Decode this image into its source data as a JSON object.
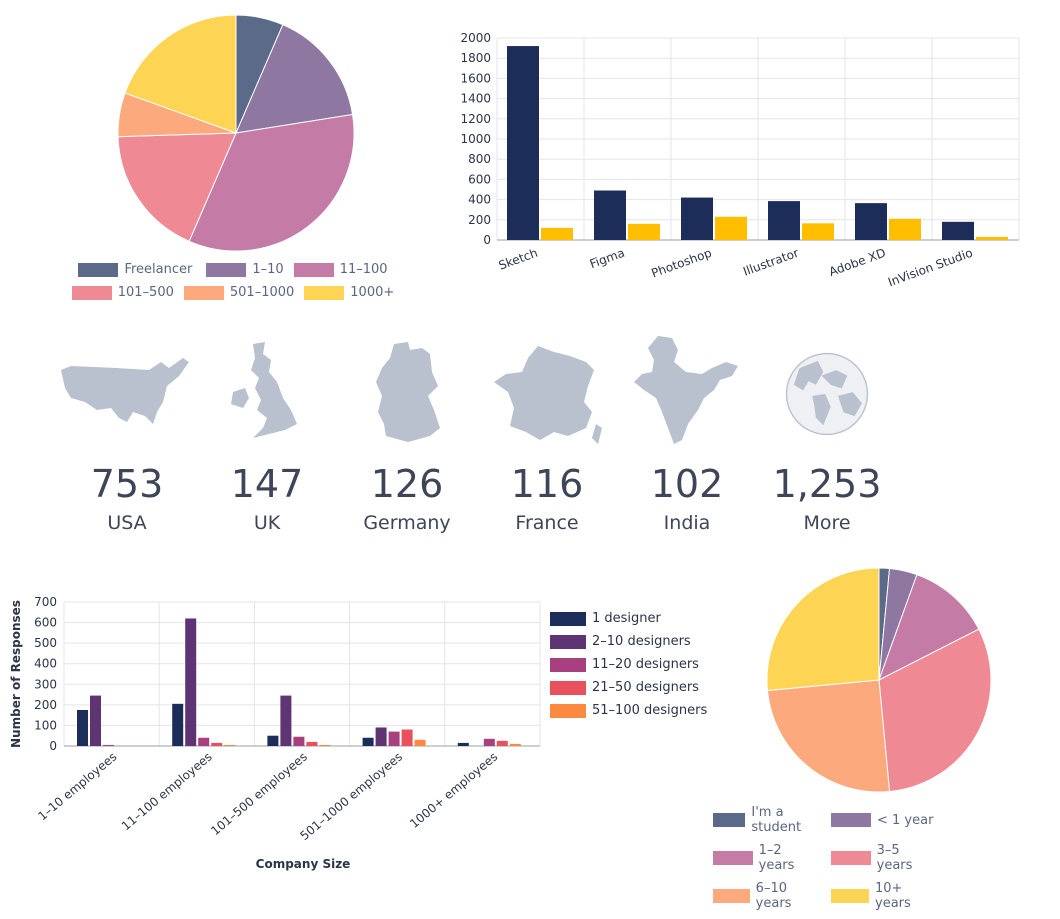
{
  "chart_data": [
    {
      "type": "pie",
      "labels": [
        "Freelancer",
        "1–10",
        "11–100",
        "101–500",
        "501–1000",
        "1000+"
      ],
      "values": [
        6.5,
        16,
        34,
        18,
        6,
        19.5
      ],
      "colors": [
        "#5a6a88",
        "#8e77a0",
        "#c47ba6",
        "#ef8a95",
        "#fca97d",
        "#fed454"
      ],
      "legend": "bottom"
    },
    {
      "type": "bar",
      "categories": [
        "Sketch",
        "Figma",
        "Photoshop",
        "Illustrator",
        "Adobe XD",
        "InVision Studio"
      ],
      "series": [
        {
          "values": [
            1920,
            490,
            420,
            385,
            365,
            180
          ],
          "color": "#1b2d58"
        },
        {
          "values": [
            120,
            160,
            230,
            165,
            210,
            30
          ],
          "color": "#ffbf00"
        }
      ],
      "ylim": [
        0,
        2000
      ],
      "yticks": [
        0,
        200,
        400,
        600,
        800,
        1000,
        1200,
        1400,
        1600,
        1800,
        2000
      ],
      "grid": true
    },
    {
      "type": "bar",
      "categories": [
        "1–10 employees",
        "11–100 employees",
        "101–500 employees",
        "501–1000 employees",
        "1000+ employees"
      ],
      "series": [
        {
          "name": "1 designer",
          "values": [
            175,
            205,
            50,
            40,
            15
          ],
          "color": "#1b2d58"
        },
        {
          "name": "2–10 designers",
          "values": [
            245,
            620,
            245,
            90,
            0
          ],
          "color": "#5f3472"
        },
        {
          "name": "11–20 designers",
          "values": [
            5,
            40,
            45,
            70,
            35
          ],
          "color": "#a83f7f"
        },
        {
          "name": "21–50 designers",
          "values": [
            0,
            15,
            20,
            80,
            25
          ],
          "color": "#e8505e"
        },
        {
          "name": "51–100 designers",
          "values": [
            0,
            5,
            5,
            30,
            10
          ],
          "color": "#fb8a40"
        }
      ],
      "ylim": [
        0,
        700
      ],
      "yticks": [
        0,
        100,
        200,
        300,
        400,
        500,
        600,
        700
      ],
      "xlabel": "Company Size",
      "ylabel": "Number of Responses",
      "grid": true,
      "legend": "right"
    },
    {
      "type": "pie",
      "labels": [
        "I'm a student",
        "< 1 year",
        "1–2 years",
        "3–5 years",
        "6–10 years",
        "10+ years"
      ],
      "values": [
        1.5,
        4,
        12,
        31,
        25,
        26.5
      ],
      "colors": [
        "#5a6a88",
        "#8e77a0",
        "#c47ba6",
        "#ef8a95",
        "#fca97d",
        "#fed454"
      ],
      "legend": "bottom"
    }
  ],
  "countries": [
    {
      "count": "753",
      "name": "USA",
      "icon": "usa-map-icon"
    },
    {
      "count": "147",
      "name": "UK",
      "icon": "uk-map-icon"
    },
    {
      "count": "126",
      "name": "Germany",
      "icon": "germany-map-icon"
    },
    {
      "count": "116",
      "name": "France",
      "icon": "france-map-icon"
    },
    {
      "count": "102",
      "name": "India",
      "icon": "india-map-icon"
    },
    {
      "count": "1,253",
      "name": "More",
      "icon": "globe-icon"
    }
  ],
  "map_color": "#b9c0ce"
}
